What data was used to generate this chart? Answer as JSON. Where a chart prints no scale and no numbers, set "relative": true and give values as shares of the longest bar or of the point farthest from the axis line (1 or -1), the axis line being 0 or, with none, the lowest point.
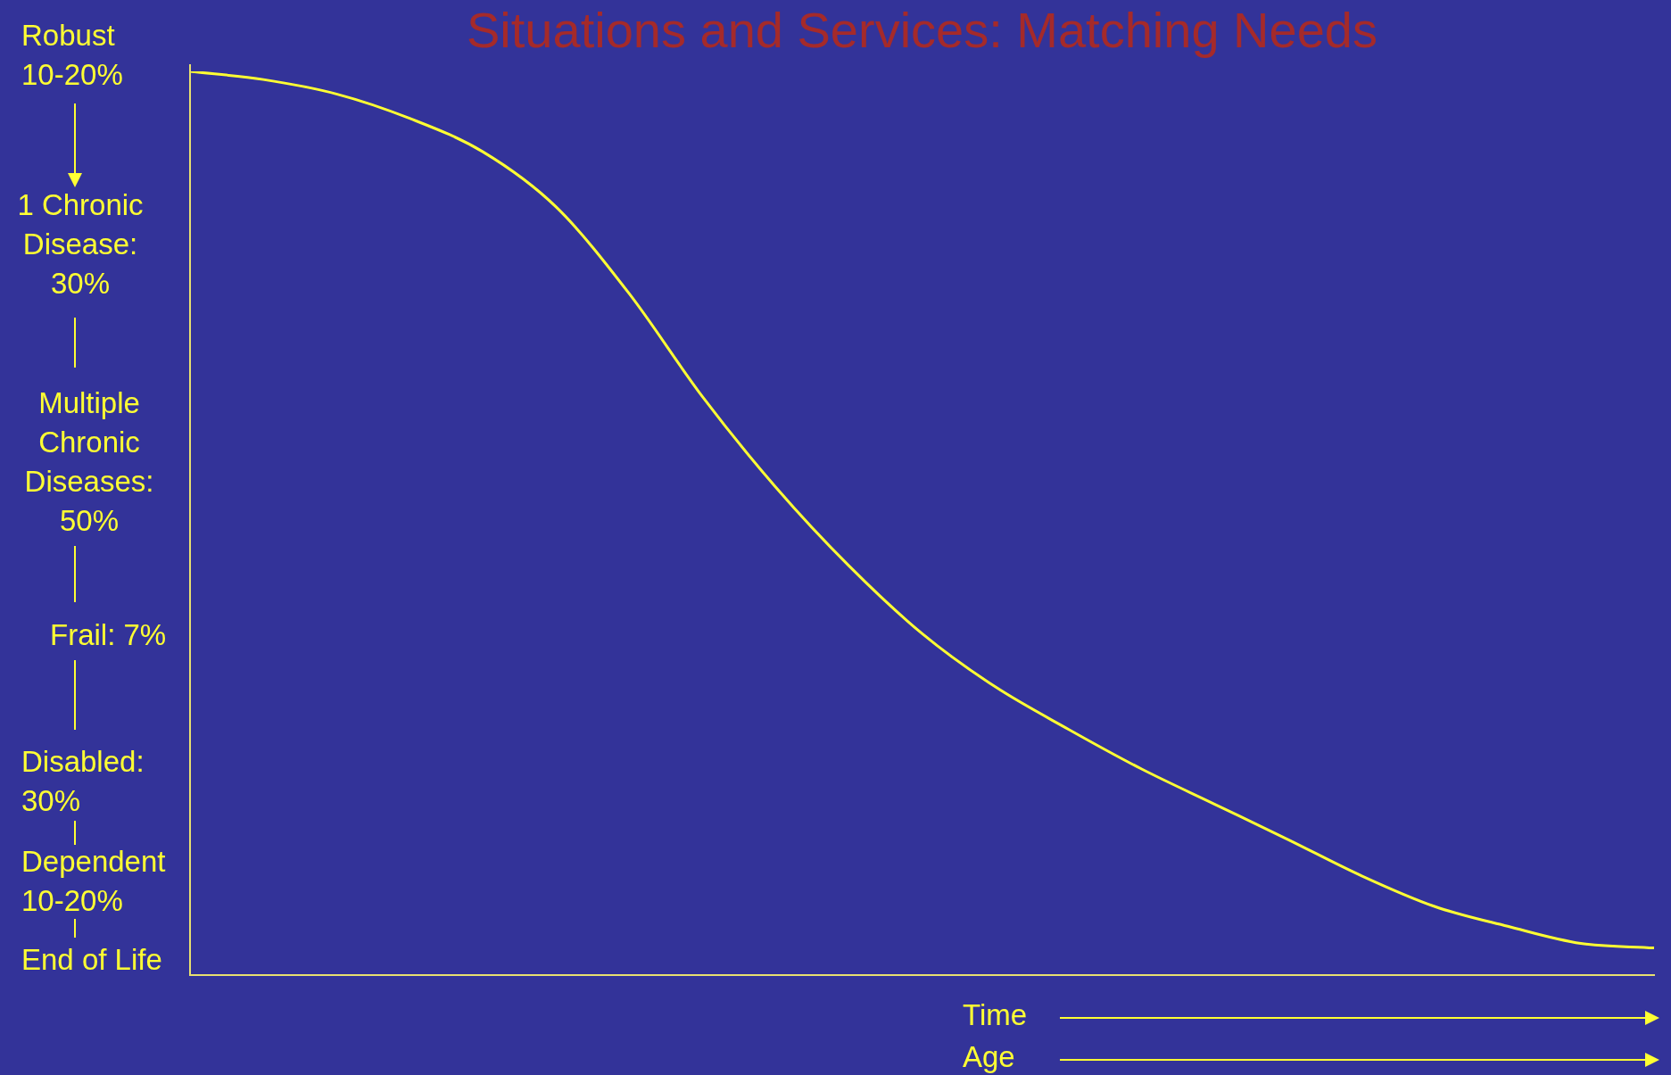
{
  "chart_data": {
    "type": "line",
    "title": "Situations and Services: Matching Needs",
    "relative": true,
    "grid": false,
    "marker": "none",
    "legend": false,
    "categories": [
      null,
      null,
      null,
      null,
      null,
      null,
      null,
      null,
      null,
      null,
      null,
      null,
      null,
      null,
      null,
      null,
      null,
      null,
      null,
      null,
      null
    ],
    "series": [
      {
        "color": "#ffff33",
        "values": [
          1,
          0.991,
          0.975,
          0.948,
          0.911,
          0.85,
          0.754,
          0.64,
          0.54,
          0.453,
          0.378,
          0.319,
          0.272,
          0.228,
          0.189,
          0.15,
          0.11,
          0.076,
          0.054,
          0.035,
          0.03
        ]
      }
    ],
    "annotations": [
      "Robust\n10-20%",
      "1 Chronic\nDisease:\n30%",
      "Multiple\nChronic\nDiseases:\n50%",
      "Frail: 7%",
      "Disabled:\n30%",
      "Dependent\n10-20%",
      "End of Life",
      "Time",
      "Age"
    ]
  }
}
